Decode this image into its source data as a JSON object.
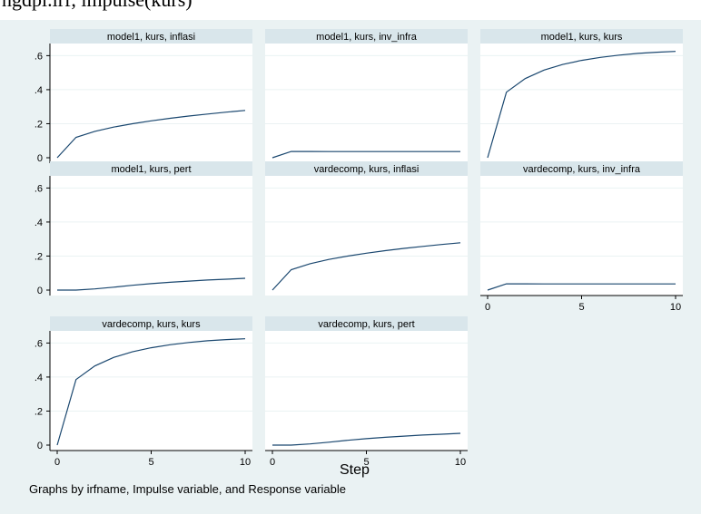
{
  "header_text": "ngdpl.irf, impulse(kurs)",
  "chart_data": {
    "type": "line",
    "layout": "3-column grid of small multiples",
    "grid": true,
    "xlabel": "Step",
    "ylim": [
      0,
      0.65
    ],
    "yticks": [
      0,
      0.2,
      0.4,
      0.6
    ],
    "ytick_labels": [
      "0",
      ".2",
      ".4",
      ".6"
    ],
    "xlim": [
      0,
      10
    ],
    "xticks": [
      0,
      5,
      10
    ],
    "xtick_labels": [
      "0",
      "5",
      "10"
    ],
    "note": "Graphs by irfname, Impulse variable, and Response variable",
    "x": [
      0,
      1,
      2,
      3,
      4,
      5,
      6,
      7,
      8,
      9,
      10
    ],
    "panels": [
      {
        "title": "model1, kurs, inflasi",
        "values": [
          0,
          0.12,
          0.155,
          0.18,
          0.2,
          0.217,
          0.232,
          0.245,
          0.257,
          0.268,
          0.278
        ]
      },
      {
        "title": "model1, kurs, inv_infra",
        "values": [
          0,
          0.037,
          0.037,
          0.036,
          0.036,
          0.036,
          0.036,
          0.036,
          0.036,
          0.036,
          0.036
        ]
      },
      {
        "title": "model1, kurs, kurs",
        "values": [
          0,
          0.385,
          0.465,
          0.515,
          0.548,
          0.572,
          0.59,
          0.603,
          0.613,
          0.62,
          0.625
        ]
      },
      {
        "title": "model1, kurs, pert",
        "values": [
          0,
          0.0,
          0.007,
          0.017,
          0.028,
          0.038,
          0.046,
          0.053,
          0.059,
          0.064,
          0.069
        ]
      },
      {
        "title": "vardecomp, kurs, inflasi",
        "values": [
          0,
          0.12,
          0.155,
          0.18,
          0.2,
          0.217,
          0.232,
          0.245,
          0.257,
          0.268,
          0.278
        ]
      },
      {
        "title": "vardecomp, kurs, inv_infra",
        "values": [
          0,
          0.037,
          0.037,
          0.036,
          0.036,
          0.036,
          0.036,
          0.036,
          0.036,
          0.036,
          0.036
        ]
      },
      {
        "title": "vardecomp, kurs, kurs",
        "values": [
          0,
          0.385,
          0.465,
          0.515,
          0.548,
          0.572,
          0.59,
          0.603,
          0.613,
          0.62,
          0.625
        ]
      },
      {
        "title": "vardecomp, kurs, pert",
        "values": [
          0,
          0.0,
          0.007,
          0.017,
          0.028,
          0.038,
          0.046,
          0.053,
          0.059,
          0.064,
          0.069
        ]
      }
    ],
    "colors": {
      "background": "#eaf2f3",
      "plot_background": "#ffffff",
      "strip": "#d9e6eb",
      "line": "#1a476f",
      "gridline": "#eaf2f3"
    }
  }
}
